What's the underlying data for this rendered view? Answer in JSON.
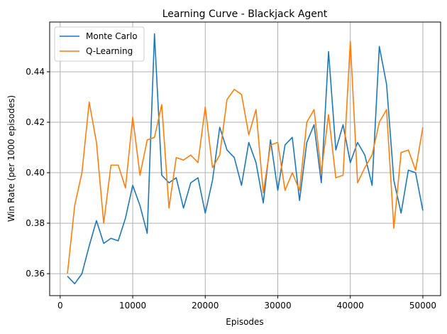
{
  "chart_data": {
    "type": "line",
    "title": "Learning Curve - Blackjack Agent",
    "xlabel": "Episodes",
    "ylabel": "Win Rate (per 1000 episodes)",
    "xlim": [
      -1450,
      52450
    ],
    "ylim": [
      0.3513,
      0.4597
    ],
    "x_ticks": [
      0,
      10000,
      20000,
      30000,
      40000,
      50000
    ],
    "x_tick_labels": [
      "0",
      "10000",
      "20000",
      "30000",
      "40000",
      "50000"
    ],
    "y_ticks": [
      0.36,
      0.38,
      0.4,
      0.42,
      0.44
    ],
    "y_tick_labels": [
      "0.36",
      "0.38",
      "0.40",
      "0.42",
      "0.44"
    ],
    "grid": true,
    "legend_position": "upper-left",
    "x": [
      1000,
      2000,
      3000,
      4000,
      5000,
      6000,
      7000,
      8000,
      9000,
      10000,
      11000,
      12000,
      13000,
      14000,
      15000,
      16000,
      17000,
      18000,
      19000,
      20000,
      21000,
      22000,
      23000,
      24000,
      25000,
      26000,
      27000,
      28000,
      29000,
      30000,
      31000,
      32000,
      33000,
      34000,
      35000,
      36000,
      37000,
      38000,
      39000,
      40000,
      41000,
      42000,
      43000,
      44000,
      45000,
      46000,
      47000,
      48000,
      49000,
      50000
    ],
    "series": [
      {
        "name": "Monte Carlo",
        "color": "#1f77b4",
        "values": [
          0.359,
          0.356,
          0.36,
          0.371,
          0.381,
          0.372,
          0.374,
          0.373,
          0.382,
          0.395,
          0.387,
          0.376,
          0.455,
          0.399,
          0.396,
          0.398,
          0.386,
          0.396,
          0.398,
          0.384,
          0.397,
          0.418,
          0.409,
          0.406,
          0.395,
          0.412,
          0.404,
          0.388,
          0.413,
          0.393,
          0.411,
          0.414,
          0.389,
          0.412,
          0.419,
          0.396,
          0.448,
          0.409,
          0.419,
          0.404,
          0.412,
          0.407,
          0.395,
          0.45,
          0.435,
          0.397,
          0.384,
          0.401,
          0.4,
          0.385
        ]
      },
      {
        "name": "Q-Learning",
        "color": "#ff7f0e",
        "values": [
          0.36,
          0.387,
          0.4,
          0.428,
          0.412,
          0.38,
          0.403,
          0.403,
          0.394,
          0.422,
          0.399,
          0.413,
          0.414,
          0.427,
          0.386,
          0.406,
          0.405,
          0.407,
          0.404,
          0.426,
          0.402,
          0.407,
          0.429,
          0.433,
          0.431,
          0.415,
          0.425,
          0.392,
          0.411,
          0.412,
          0.393,
          0.4,
          0.393,
          0.42,
          0.425,
          0.4,
          0.423,
          0.398,
          0.399,
          0.452,
          0.396,
          0.402,
          0.407,
          0.42,
          0.425,
          0.378,
          0.408,
          0.409,
          0.401,
          0.418
        ]
      }
    ]
  }
}
